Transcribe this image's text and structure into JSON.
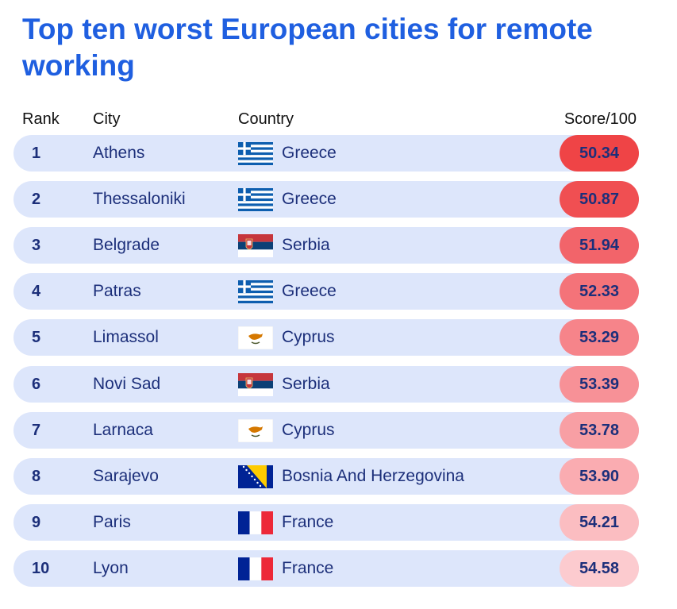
{
  "title": "Top ten worst European cities for remote working",
  "chart_data": {
    "type": "table",
    "columns": [
      "Rank",
      "City",
      "Country",
      "Score/100"
    ],
    "rows": [
      {
        "rank": "1",
        "city": "Athens",
        "country": "Greece",
        "flag": "greece-flag-icon",
        "score": "50.34",
        "color": "#ef4446"
      },
      {
        "rank": "2",
        "city": "Thessaloniki",
        "country": "Greece",
        "flag": "greece-flag-icon",
        "score": "50.87",
        "color": "#f04f52"
      },
      {
        "rank": "3",
        "city": "Belgrade",
        "country": "Serbia",
        "flag": "serbia-flag-icon",
        "score": "51.94",
        "color": "#f2646a"
      },
      {
        "rank": "4",
        "city": "Patras",
        "country": "Greece",
        "flag": "greece-flag-icon",
        "score": "52.33",
        "color": "#f47379"
      },
      {
        "rank": "5",
        "city": "Limassol",
        "country": "Cyprus",
        "flag": "cyprus-flag-icon",
        "score": "53.29",
        "color": "#f6848a"
      },
      {
        "rank": "6",
        "city": "Novi Sad",
        "country": "Serbia",
        "flag": "serbia-flag-icon",
        "score": "53.39",
        "color": "#f79197"
      },
      {
        "rank": "7",
        "city": "Larnaca",
        "country": "Cyprus",
        "flag": "cyprus-flag-icon",
        "score": "53.78",
        "color": "#f89fa4"
      },
      {
        "rank": "8",
        "city": "Sarajevo",
        "country": "Bosnia And Herzegovina",
        "flag": "bosnia-flag-icon",
        "score": "53.90",
        "color": "#faacb1"
      },
      {
        "rank": "9",
        "city": "Paris",
        "country": "France",
        "flag": "france-flag-icon",
        "score": "54.21",
        "color": "#fbbdc1"
      },
      {
        "rank": "10",
        "city": "Lyon",
        "country": "France",
        "flag": "france-flag-icon",
        "score": "54.58",
        "color": "#fccbcf"
      }
    ]
  }
}
